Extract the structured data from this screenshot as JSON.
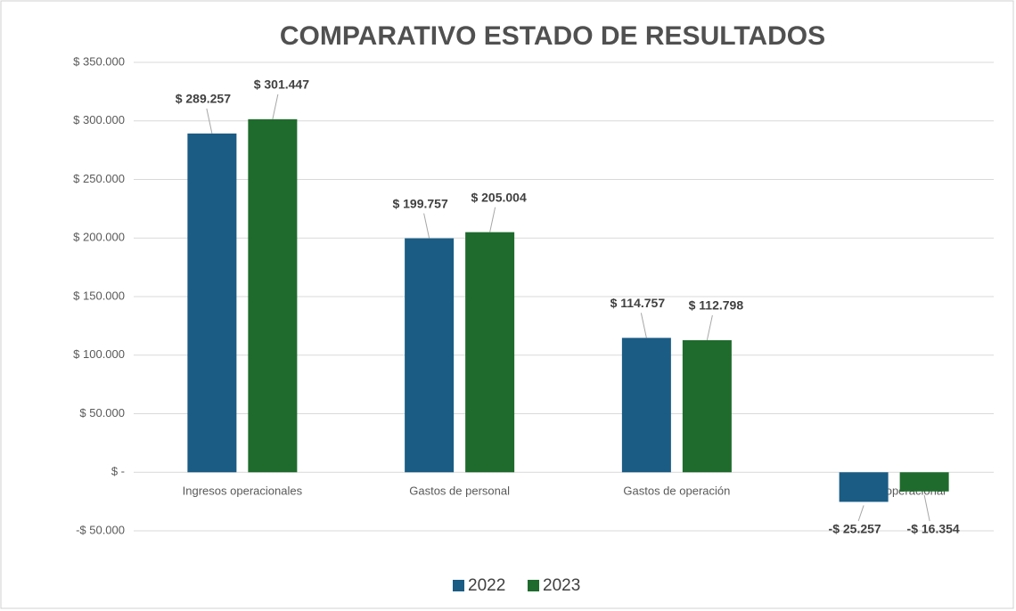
{
  "chart_data": {
    "type": "bar",
    "title": "COMPARATIVO ESTADO DE RESULTADOS",
    "categories": [
      "Ingresos operacionales",
      "Gastos de personal",
      "Gastos de operación",
      "Perdida operacional"
    ],
    "series": [
      {
        "name": "2022",
        "color": "#1a5c84",
        "values": [
          289257,
          199757,
          114757,
          -25257
        ],
        "value_labels": [
          "$ 289.257",
          "$ 199.757",
          "$ 114.757",
          "-$ 25.257"
        ]
      },
      {
        "name": "2023",
        "color": "#1f6b2d",
        "values": [
          301447,
          205004,
          112798,
          -16354
        ],
        "value_labels": [
          "$ 301.447",
          "$ 205.004",
          "$ 112.798",
          "-$ 16.354"
        ]
      }
    ],
    "ylim": [
      -50000,
      350000
    ],
    "yticks": [
      {
        "value": -50000,
        "label": "-$ 50.000"
      },
      {
        "value": 0,
        "label": "$ -"
      },
      {
        "value": 50000,
        "label": "$ 50.000"
      },
      {
        "value": 100000,
        "label": "$ 100.000"
      },
      {
        "value": 150000,
        "label": "$ 150.000"
      },
      {
        "value": 200000,
        "label": "$ 200.000"
      },
      {
        "value": 250000,
        "label": "$ 250.000"
      },
      {
        "value": 300000,
        "label": "$ 300.000"
      },
      {
        "value": 350000,
        "label": "$ 350.000"
      }
    ],
    "grid": true,
    "legend": "bottom"
  }
}
